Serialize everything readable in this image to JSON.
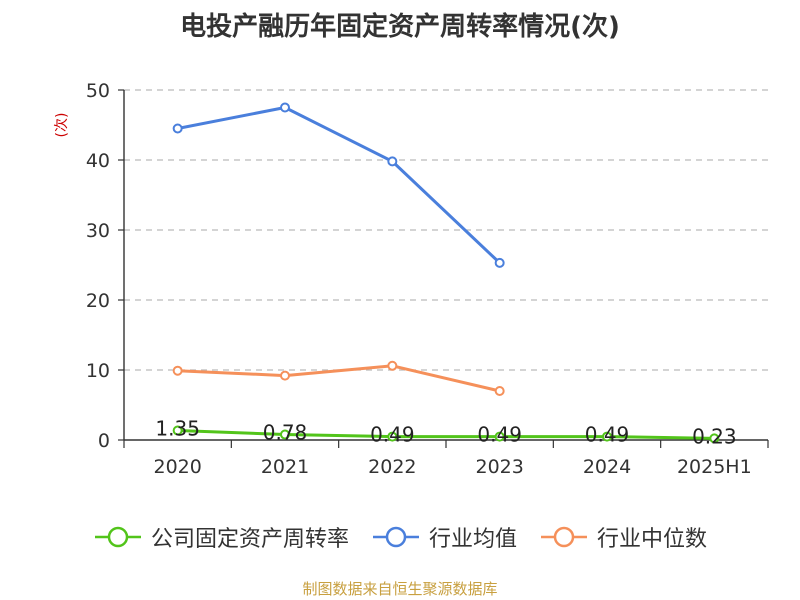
{
  "chart_data": {
    "type": "line",
    "title": "电投产融历年固定资产周转率情况(次)",
    "ylabel": "(次)",
    "xlabel": "",
    "categories": [
      "2020",
      "2021",
      "2022",
      "2023",
      "2024",
      "2025H1"
    ],
    "ylim": [
      0,
      50
    ],
    "yticks": [
      0,
      10,
      20,
      30,
      40,
      50
    ],
    "grid": true,
    "legend_position": "bottom",
    "series": [
      {
        "name": "公司固定资产周转率",
        "color": "#52c41a",
        "values": [
          1.35,
          0.78,
          0.49,
          0.49,
          0.49,
          0.23
        ],
        "labels": [
          "1.35",
          "0.78",
          "0.49",
          "0.49",
          "0.49",
          "0.23"
        ]
      },
      {
        "name": "行业均值",
        "color": "#4a7fdc",
        "values": [
          44.5,
          47.5,
          39.8,
          25.3,
          null,
          null
        ]
      },
      {
        "name": "行业中位数",
        "color": "#f5905a",
        "values": [
          9.9,
          9.2,
          10.6,
          7.0,
          null,
          null
        ]
      }
    ]
  },
  "source": "制图数据来自恒生聚源数据库"
}
